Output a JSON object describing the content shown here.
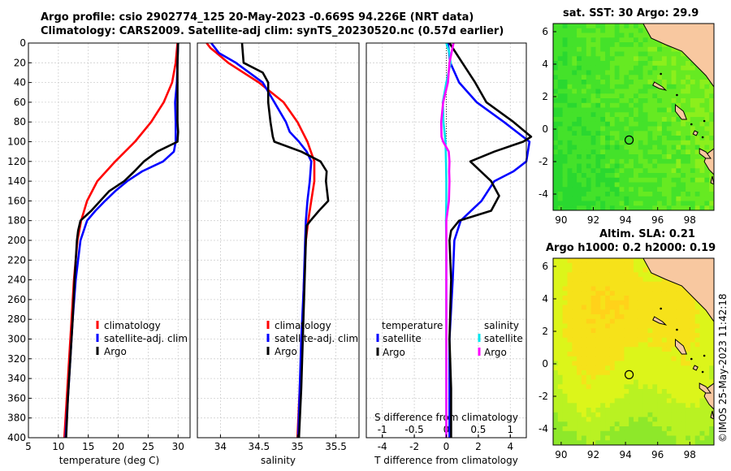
{
  "title": {
    "line1": "Argo profile: csio 2902774_125 20-May-2023 -0.669S 94.226E (NRT data)",
    "line2": "Climatology: CARS2009. Satellite-adj clim: synTS_20230520.nc (0.57d earlier)"
  },
  "credit": "©IMOS 25-May-2023 11:42:18",
  "colors": {
    "red": "#ff0000",
    "blue": "#0000ff",
    "black": "#000000",
    "cyan": "#00e5ee",
    "magenta": "#ff00ff",
    "land": "#f8c8a0",
    "grid": "#cfcfcf"
  },
  "chart_data": [
    {
      "type": "line",
      "name": "temperature-profile",
      "xlabel": "temperature (deg C)",
      "xlim": [
        5,
        32
      ],
      "ylim": [
        0,
        400
      ],
      "xticks": [
        5,
        10,
        15,
        20,
        25,
        30
      ],
      "yticks": [
        0,
        20,
        40,
        60,
        80,
        100,
        120,
        140,
        160,
        180,
        200,
        220,
        240,
        260,
        280,
        300,
        320,
        340,
        360,
        380,
        400
      ],
      "legend": [
        "climatology",
        "satellite-adj. clim",
        "Argo"
      ],
      "series": [
        {
          "name": "climatology",
          "color": "red",
          "depth": [
            0,
            20,
            40,
            60,
            80,
            100,
            120,
            140,
            160,
            180,
            200,
            240,
            280,
            320,
            360,
            400
          ],
          "values": [
            29.9,
            29.6,
            29.0,
            27.6,
            25.5,
            22.8,
            19.5,
            16.5,
            14.8,
            13.8,
            13.2,
            12.6,
            12.2,
            11.8,
            11.4,
            11.0
          ]
        },
        {
          "name": "satellite-adj. clim",
          "color": "blue",
          "depth": [
            0,
            20,
            40,
            60,
            80,
            100,
            110,
            120,
            130,
            140,
            150,
            160,
            170,
            180,
            200,
            240,
            280,
            320,
            360,
            400
          ],
          "values": [
            30.0,
            29.9,
            29.8,
            29.5,
            29.6,
            29.6,
            29.3,
            27.5,
            24.0,
            21.5,
            19.5,
            17.8,
            16.2,
            14.8,
            13.7,
            12.9,
            12.4,
            12.0,
            11.6,
            11.2
          ]
        },
        {
          "name": "Argo",
          "color": "black",
          "depth": [
            0,
            20,
            40,
            60,
            70,
            80,
            90,
            100,
            110,
            120,
            130,
            140,
            150,
            160,
            170,
            180,
            190,
            200,
            240,
            280,
            320,
            360,
            400
          ],
          "values": [
            30.0,
            29.9,
            29.9,
            29.9,
            29.9,
            29.9,
            30.0,
            29.9,
            26.5,
            24.3,
            22.7,
            21.0,
            18.5,
            17.0,
            15.5,
            13.7,
            13.3,
            13.1,
            12.7,
            12.4,
            12.0,
            11.6,
            11.3
          ]
        }
      ]
    },
    {
      "type": "line",
      "name": "salinity-profile",
      "xlabel": "salinity",
      "xlim": [
        33.7,
        35.8
      ],
      "ylim": [
        0,
        400
      ],
      "xticks": [
        34,
        34.5,
        35,
        35.5
      ],
      "legend": [
        "climatology",
        "satellite-adj. clim",
        "Argo"
      ],
      "series": [
        {
          "name": "climatology",
          "color": "red",
          "depth": [
            0,
            5,
            10,
            20,
            40,
            60,
            80,
            100,
            120,
            140,
            160,
            180,
            200,
            250,
            300,
            350,
            400
          ],
          "values": [
            33.82,
            33.87,
            33.95,
            34.1,
            34.5,
            34.82,
            35.0,
            35.13,
            35.22,
            35.22,
            35.18,
            35.14,
            35.11,
            35.08,
            35.06,
            35.03,
            35.0
          ]
        },
        {
          "name": "satellite-adj. clim",
          "color": "blue",
          "depth": [
            0,
            5,
            10,
            20,
            40,
            60,
            80,
            90,
            100,
            110,
            120,
            140,
            160,
            180,
            200,
            250,
            300,
            350,
            400
          ],
          "values": [
            33.88,
            33.93,
            33.98,
            34.2,
            34.55,
            34.7,
            34.85,
            34.9,
            35.02,
            35.12,
            35.18,
            35.16,
            35.13,
            35.11,
            35.1,
            35.08,
            35.05,
            35.03,
            35.01
          ]
        },
        {
          "name": "Argo",
          "color": "black",
          "depth": [
            0,
            20,
            30,
            40,
            60,
            80,
            95,
            100,
            110,
            120,
            130,
            140,
            160,
            170,
            180,
            185,
            200,
            250,
            300,
            350,
            400
          ],
          "values": [
            34.28,
            34.3,
            34.55,
            34.62,
            34.62,
            34.65,
            34.68,
            34.7,
            35.05,
            35.3,
            35.38,
            35.37,
            35.4,
            35.28,
            35.17,
            35.12,
            35.11,
            35.09,
            35.07,
            35.05,
            35.02
          ]
        }
      ]
    },
    {
      "type": "line",
      "name": "difference-profile",
      "xlabel": "T difference from climatology",
      "xlim": [
        -5,
        5
      ],
      "ylim": [
        0,
        400
      ],
      "xticks": [
        -4,
        -2,
        0,
        2,
        4
      ],
      "top_axis": {
        "label": "S difference from climatology",
        "ticks": [
          -1,
          -0.5,
          0,
          0.5,
          1
        ],
        "range": [
          -1.25,
          1.25
        ]
      },
      "legend": {
        "temperature_heading": "temperature",
        "salinity_heading": "salinity",
        "temperature": [
          "satellite",
          "Argo"
        ],
        "salinity": [
          "satellite",
          "Argo"
        ]
      },
      "series": [
        {
          "name": "temperature satellite",
          "color": "blue",
          "depth": [
            0,
            20,
            40,
            60,
            80,
            100,
            120,
            130,
            140,
            160,
            180,
            200,
            240,
            300,
            400
          ],
          "values": [
            0.1,
            0.25,
            0.8,
            1.9,
            3.6,
            5.2,
            5.0,
            4.2,
            3.0,
            2.2,
            0.9,
            0.5,
            0.4,
            0.2,
            0.2
          ]
        },
        {
          "name": "temperature Argo",
          "color": "black",
          "depth": [
            0,
            20,
            40,
            60,
            80,
            95,
            100,
            110,
            120,
            140,
            155,
            170,
            180,
            190,
            200,
            240,
            300,
            350,
            400
          ],
          "values": [
            0.2,
            1.0,
            1.8,
            2.5,
            4.2,
            5.3,
            4.8,
            3.0,
            1.5,
            2.8,
            3.3,
            2.8,
            0.8,
            0.3,
            0.2,
            0.3,
            0.2,
            0.3,
            0.3
          ]
        },
        {
          "name": "salinity satellite",
          "color": "cyan",
          "depth": [
            0,
            10,
            20,
            40,
            60,
            80,
            100,
            120,
            140,
            160,
            180,
            200,
            300,
            400
          ],
          "values": [
            0.0,
            0.2,
            0.27,
            0.0,
            -0.22,
            -0.18,
            -0.05,
            -0.02,
            0.0,
            0.0,
            -0.02,
            0.0,
            0.0,
            0.0
          ]
        },
        {
          "name": "salinity Argo",
          "color": "magenta",
          "depth": [
            0,
            20,
            40,
            60,
            80,
            95,
            100,
            110,
            120,
            130,
            140,
            160,
            180,
            190,
            200,
            300,
            400
          ],
          "values": [
            0.45,
            0.2,
            0.1,
            -0.2,
            -0.32,
            -0.3,
            -0.2,
            0.15,
            0.2,
            0.18,
            0.2,
            0.16,
            0.0,
            0.0,
            0.0,
            0.0,
            0.0
          ]
        }
      ]
    },
    {
      "type": "heatmap",
      "name": "sst-map",
      "title": "sat. SST: 30 Argo: 29.9",
      "xlim": [
        89.5,
        99.5
      ],
      "ylim": [
        -5,
        6.5
      ],
      "xticks": [
        90,
        92,
        94,
        96,
        98
      ],
      "yticks": [
        -4,
        -2,
        0,
        2,
        4,
        6
      ],
      "float": {
        "lon": 94.226,
        "lat": -0.669
      }
    },
    {
      "type": "heatmap",
      "name": "sla-map",
      "title": "Altim. SLA: 0.21",
      "subtitle": "Argo h1000: 0.2 h2000: 0.19",
      "xlim": [
        89.5,
        99.5
      ],
      "ylim": [
        -5,
        6.5
      ],
      "xticks": [
        90,
        92,
        94,
        96,
        98
      ],
      "yticks": [
        -4,
        -2,
        0,
        2,
        4,
        6
      ],
      "float": {
        "lon": 94.226,
        "lat": -0.669
      }
    }
  ]
}
